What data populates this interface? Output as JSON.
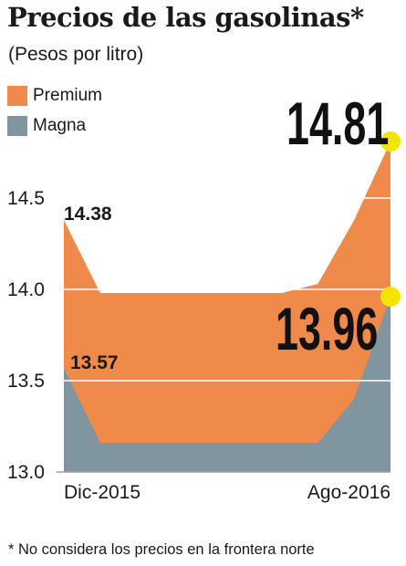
{
  "title": "Precios de las gasolinas*",
  "subtitle": "(Pesos por litro)",
  "footnote": "* No considera los precios en la frontera norte",
  "colors": {
    "premium": "#f08a4b",
    "magna": "#7f96a1",
    "highlight": "#f2e600",
    "grid": "#ffffff",
    "text": "#1a1a1a"
  },
  "chart_data": {
    "type": "area",
    "categories": [
      "Dic-2015",
      "",
      "",
      "",
      "",
      "",
      "",
      "",
      "",
      "Ago-2016"
    ],
    "x_tick_labels": [
      "Dic-2015",
      "Ago-2016"
    ],
    "series": [
      {
        "name": "Premium",
        "values": [
          14.38,
          13.98,
          13.98,
          13.98,
          13.98,
          13.98,
          13.98,
          14.03,
          14.38,
          14.81
        ]
      },
      {
        "name": "Magna",
        "values": [
          13.57,
          13.16,
          13.16,
          13.16,
          13.16,
          13.16,
          13.16,
          13.16,
          13.4,
          13.96
        ]
      }
    ],
    "ylim": [
      13.0,
      15.0
    ],
    "y_ticks": [
      {
        "value": 13.0,
        "label": "13.0"
      },
      {
        "value": 13.5,
        "label": "13.5"
      },
      {
        "value": 14.0,
        "label": "14.0"
      },
      {
        "value": 14.5,
        "label": "14.5"
      }
    ],
    "annotations": {
      "premium_start": "14.38",
      "magna_start": "13.57",
      "premium_end": "14.81",
      "magna_end": "13.96"
    },
    "grid": true,
    "legend_position": "top-left"
  }
}
